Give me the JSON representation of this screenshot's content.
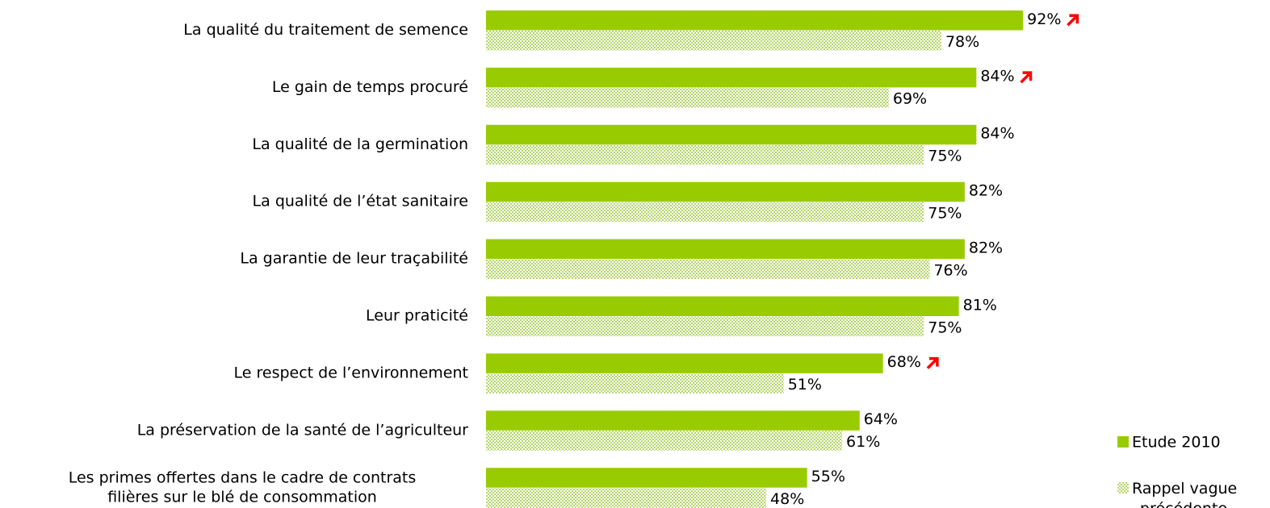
{
  "chart_data": {
    "type": "bar",
    "orientation": "horizontal",
    "categories": [
      "La qualité du traitement de semence",
      "Le gain de temps procuré",
      "La qualité de la germination ",
      "La qualité de l’état sanitaire",
      "La garantie de leur traçabilité",
      "Leur praticité",
      "Le respect de l’environnement ",
      "La préservation de la santé de l’agriculteur",
      "Les primes offertes dans le cadre de contrats\nfilières sur le blé de consommation"
    ],
    "series": [
      {
        "name": "Etude 2010",
        "color": "#99cc00",
        "pattern": "solid",
        "values": [
          92,
          84,
          84,
          82,
          82,
          81,
          68,
          64,
          55
        ],
        "value_labels": [
          "92%",
          "84%",
          "84%",
          "82%",
          "82%",
          "81%",
          "68%",
          "64%",
          "55%"
        ],
        "increase_marker": [
          true,
          true,
          false,
          false,
          false,
          false,
          true,
          false,
          false
        ]
      },
      {
        "name": "Rappel vague précédente",
        "color": "#c8e08e",
        "pattern": "dotted",
        "values": [
          78,
          69,
          75,
          75,
          76,
          75,
          51,
          61,
          48
        ],
        "value_labels": [
          "78%",
          "69%",
          "75%",
          "75%",
          "76%",
          "75%",
          "51%",
          "61%",
          "48%"
        ]
      }
    ],
    "marker_color": "#ff0000",
    "xlim": [
      0,
      100
    ],
    "legend": "bottom-right"
  }
}
